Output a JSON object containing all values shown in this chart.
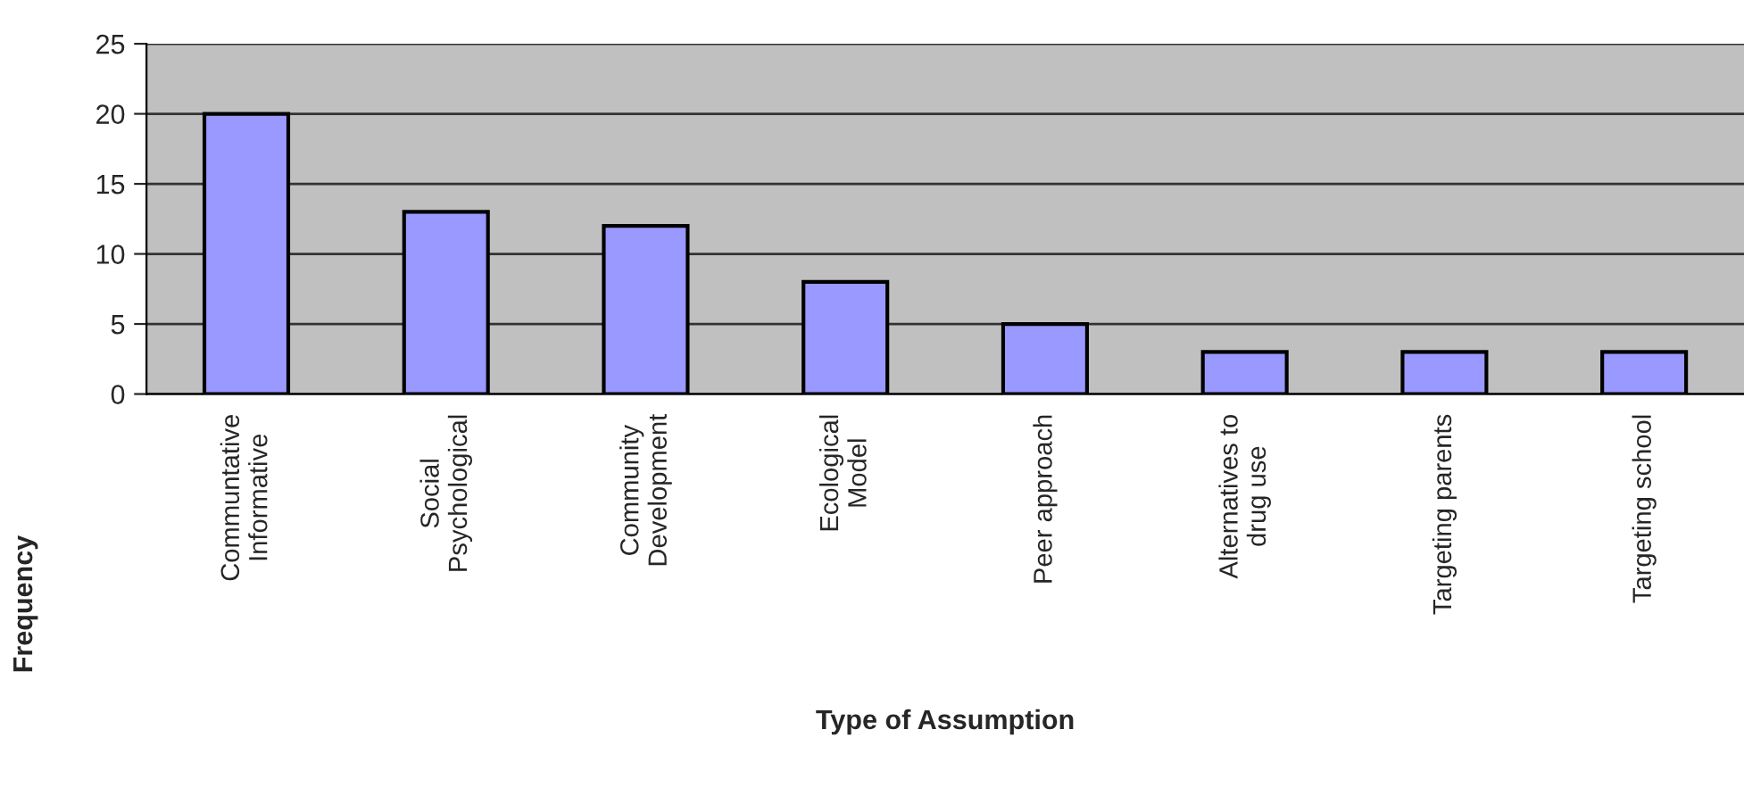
{
  "chart_data": {
    "type": "bar",
    "xlabel": "Type of Assumption",
    "ylabel": "Frequency",
    "categories": [
      "Communtative\nInformative",
      "Social\nPsychological",
      "Community\nDevelopment",
      "Ecological\nModel",
      "Peer approach",
      "Alternatives to\ndrug use",
      "Targeting parents",
      "Targeting school"
    ],
    "values": [
      20,
      13,
      12,
      8,
      5,
      3,
      3,
      3
    ],
    "color": "#9999ff",
    "ylim": [
      0,
      25
    ],
    "yticks": [
      0,
      5,
      10,
      15,
      20,
      25
    ],
    "grid": "y",
    "legend": false
  }
}
